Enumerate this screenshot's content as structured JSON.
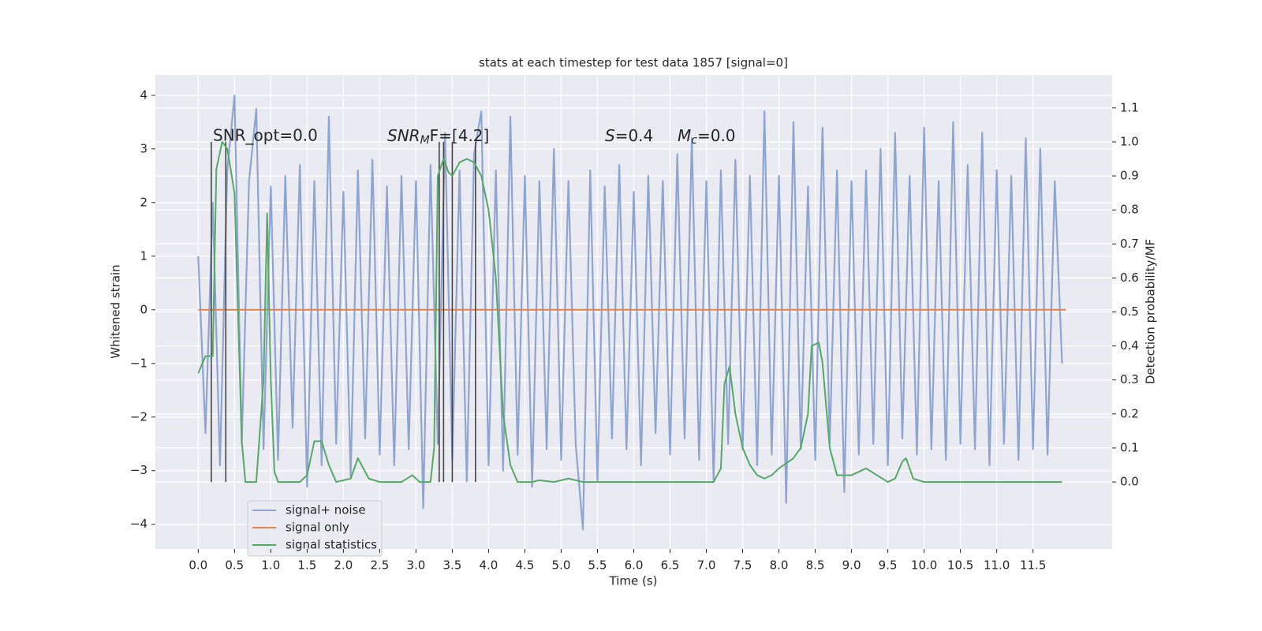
{
  "chart_data": {
    "type": "line",
    "title": "stats at each timestep for test data 1857 [signal=0]",
    "xlabel": "Time (s)",
    "ylabel": "Whitened strain",
    "y2label": "Detection probability/MF",
    "annotations": [
      {
        "text": "SNR_opt=0.0"
      },
      {
        "main": "SNR",
        "sub": "M",
        "after": "F=[4.2]"
      },
      {
        "main": "S",
        "after": "=0.4"
      },
      {
        "main": "M",
        "sub": "c",
        "after": "=0.0"
      }
    ],
    "grid": true,
    "legend": "lower left",
    "xlim": [
      -0.59,
      12.59
    ],
    "xticks": [
      {
        "value": 0,
        "label": "0.0"
      },
      {
        "value": 0.5,
        "label": "0.5"
      },
      {
        "value": 1,
        "label": "1.0"
      },
      {
        "value": 1.5,
        "label": "1.5"
      },
      {
        "value": 2,
        "label": "2.0"
      },
      {
        "value": 2.5,
        "label": "2.5"
      },
      {
        "value": 3,
        "label": "3.0"
      },
      {
        "value": 3.5,
        "label": "3.5"
      },
      {
        "value": 4,
        "label": "4.0"
      },
      {
        "value": 4.5,
        "label": "4.5"
      },
      {
        "value": 5,
        "label": "5.0"
      },
      {
        "value": 5.5,
        "label": "5.5"
      },
      {
        "value": 6,
        "label": "6.0"
      },
      {
        "value": 6.5,
        "label": "6.5"
      },
      {
        "value": 7,
        "label": "7.0"
      },
      {
        "value": 7.5,
        "label": "7.5"
      },
      {
        "value": 8,
        "label": "8.0"
      },
      {
        "value": 8.5,
        "label": "8.5"
      },
      {
        "value": 9,
        "label": "9.0"
      },
      {
        "value": 9.5,
        "label": "9.5"
      },
      {
        "value": 10,
        "label": "10.0"
      },
      {
        "value": 10.5,
        "label": "10.5"
      },
      {
        "value": 11,
        "label": "11.0"
      },
      {
        "value": 11.5,
        "label": "11.5"
      }
    ],
    "ylim": [
      -4.46,
      4.38
    ],
    "yticks": [
      {
        "value": -4,
        "label": "−4"
      },
      {
        "value": -3,
        "label": "−3"
      },
      {
        "value": -2,
        "label": "−2"
      },
      {
        "value": -1,
        "label": "−1"
      },
      0,
      1,
      2,
      3,
      4
    ],
    "y2lim": [
      -0.197,
      1.197
    ],
    "y2ticks": [
      {
        "value": 0,
        "label": "0.0"
      },
      {
        "value": 0.1,
        "label": "0.1"
      },
      {
        "value": 0.2,
        "label": "0.2"
      },
      {
        "value": 0.3,
        "label": "0.3"
      },
      {
        "value": 0.4,
        "label": "0.4"
      },
      {
        "value": 0.5,
        "label": "0.5"
      },
      {
        "value": 0.6,
        "label": "0.6"
      },
      {
        "value": 0.7,
        "label": "0.7"
      },
      {
        "value": 0.8,
        "label": "0.8"
      },
      {
        "value": 0.9,
        "label": "0.9"
      },
      {
        "value": 1,
        "label": "1.0"
      },
      {
        "value": 1.1,
        "label": "1.1"
      }
    ],
    "vlines": {
      "color": "#444444",
      "x": [
        0.18,
        0.38,
        3.32,
        3.38,
        3.5,
        3.82
      ],
      "ymin": 0,
      "ymax": 1
    },
    "series": [
      {
        "name": "signal+ noise",
        "color": "#8fa5cf",
        "x": [
          0,
          0.1,
          0.2,
          0.3,
          0.4,
          0.5,
          0.6,
          0.7,
          0.8,
          0.9,
          1,
          1.1,
          1.2,
          1.3,
          1.4,
          1.5,
          1.6,
          1.7,
          1.8,
          1.9,
          2,
          2.1,
          2.2,
          2.3,
          2.4,
          2.5,
          2.6,
          2.7,
          2.8,
          2.9,
          3,
          3.1,
          3.2,
          3.3,
          3.4,
          3.5,
          3.6,
          3.7,
          3.8,
          3.9,
          4,
          4.1,
          4.2,
          4.3,
          4.4,
          4.5,
          4.6,
          4.7,
          4.8,
          4.9,
          5,
          5.1,
          5.2,
          5.3,
          5.4,
          5.5,
          5.6,
          5.7,
          5.8,
          5.9,
          6,
          6.1,
          6.2,
          6.3,
          6.4,
          6.5,
          6.6,
          6.7,
          6.8,
          6.9,
          7,
          7.1,
          7.2,
          7.3,
          7.4,
          7.5,
          7.6,
          7.7,
          7.8,
          7.9,
          8,
          8.1,
          8.2,
          8.3,
          8.4,
          8.5,
          8.6,
          8.7,
          8.8,
          8.9,
          9,
          9.1,
          9.2,
          9.3,
          9.4,
          9.5,
          9.6,
          9.7,
          9.8,
          9.9,
          10,
          10.1,
          10.2,
          10.3,
          10.4,
          10.5,
          10.6,
          10.7,
          10.8,
          10.9,
          11,
          11.1,
          11.2,
          11.3,
          11.4,
          11.5,
          11.6,
          11.7,
          11.8,
          11.9
        ],
        "values": [
          1.0,
          -2.3,
          2.0,
          -2.9,
          2.6,
          4.0,
          -2.5,
          2.4,
          3.75,
          -2.6,
          2.3,
          -2.8,
          2.5,
          -2.2,
          2.7,
          -3.3,
          2.4,
          -2.9,
          3.6,
          -2.5,
          2.2,
          -3.1,
          2.6,
          -2.4,
          2.8,
          -2.7,
          2.3,
          -2.9,
          2.5,
          -2.6,
          2.4,
          -3.7,
          2.7,
          -2.5,
          3.3,
          -2.8,
          2.6,
          -3.2,
          2.9,
          3.7,
          -2.9,
          2.6,
          -3.0,
          3.6,
          -2.7,
          2.5,
          -3.3,
          2.4,
          -2.6,
          3.0,
          -2.8,
          2.4,
          -2.5,
          -4.1,
          2.6,
          -3.2,
          2.3,
          -2.4,
          2.7,
          -2.6,
          2.2,
          -2.9,
          2.5,
          -2.3,
          2.4,
          -2.7,
          2.9,
          -2.4,
          3.2,
          -2.8,
          2.4,
          -3.2,
          2.6,
          -2.5,
          2.8,
          -2.6,
          2.5,
          -2.9,
          3.7,
          -2.7,
          2.5,
          -3.6,
          3.5,
          -2.6,
          2.3,
          -2.8,
          3.4,
          -2.5,
          2.6,
          -3.4,
          2.4,
          -2.7,
          2.6,
          -2.5,
          3.0,
          -2.9,
          3.3,
          -2.4,
          2.5,
          -2.7,
          3.4,
          -2.6,
          2.4,
          -2.8,
          3.5,
          -2.5,
          2.7,
          -2.6,
          3.3,
          -2.9,
          2.6,
          -2.5,
          2.5,
          -2.8,
          3.2,
          -2.6,
          3.0,
          -2.7,
          2.4,
          -1.0
        ]
      },
      {
        "name": "signal only",
        "color": "#dd8452",
        "x": [
          0,
          11.95
        ],
        "values": [
          0,
          0
        ]
      },
      {
        "name": "signal statistics",
        "color": "#55a868",
        "axis": "y2",
        "x": [
          0,
          0.1,
          0.2,
          0.25,
          0.33,
          0.4,
          0.5,
          0.6,
          0.65,
          0.8,
          0.9,
          0.95,
          1.0,
          1.05,
          1.1,
          1.4,
          1.5,
          1.6,
          1.7,
          1.8,
          1.9,
          2.1,
          2.2,
          2.35,
          2.5,
          2.8,
          2.95,
          3.05,
          3.2,
          3.25,
          3.3,
          3.38,
          3.45,
          3.5,
          3.6,
          3.7,
          3.8,
          3.9,
          4.0,
          4.1,
          4.2,
          4.3,
          4.4,
          4.6,
          4.7,
          4.9,
          5.1,
          5.3,
          6.3,
          7.1,
          7.2,
          7.25,
          7.32,
          7.4,
          7.5,
          7.6,
          7.7,
          7.8,
          7.9,
          8.0,
          8.2,
          8.3,
          8.4,
          8.45,
          8.55,
          8.6,
          8.7,
          8.8,
          9.0,
          9.2,
          9.35,
          9.5,
          9.6,
          9.7,
          9.75,
          9.85,
          10.0,
          10.5,
          11.9
        ],
        "values": [
          0.32,
          0.37,
          0.37,
          0.92,
          1.0,
          0.98,
          0.85,
          0.12,
          0.0,
          0.0,
          0.3,
          0.79,
          0.3,
          0.03,
          0.0,
          0.0,
          0.02,
          0.12,
          0.12,
          0.05,
          0.0,
          0.01,
          0.07,
          0.01,
          0.0,
          0.0,
          0.02,
          0.0,
          0.0,
          0.1,
          0.9,
          0.95,
          0.91,
          0.9,
          0.94,
          0.95,
          0.94,
          0.9,
          0.8,
          0.6,
          0.2,
          0.05,
          0.0,
          0.0,
          0.005,
          0.0,
          0.01,
          0.0,
          0.0,
          0.0,
          0.04,
          0.29,
          0.34,
          0.2,
          0.1,
          0.05,
          0.02,
          0.01,
          0.02,
          0.04,
          0.07,
          0.1,
          0.2,
          0.4,
          0.41,
          0.35,
          0.1,
          0.02,
          0.02,
          0.04,
          0.02,
          0.0,
          0.01,
          0.06,
          0.07,
          0.01,
          0.0,
          0.0,
          0.0
        ]
      }
    ]
  }
}
